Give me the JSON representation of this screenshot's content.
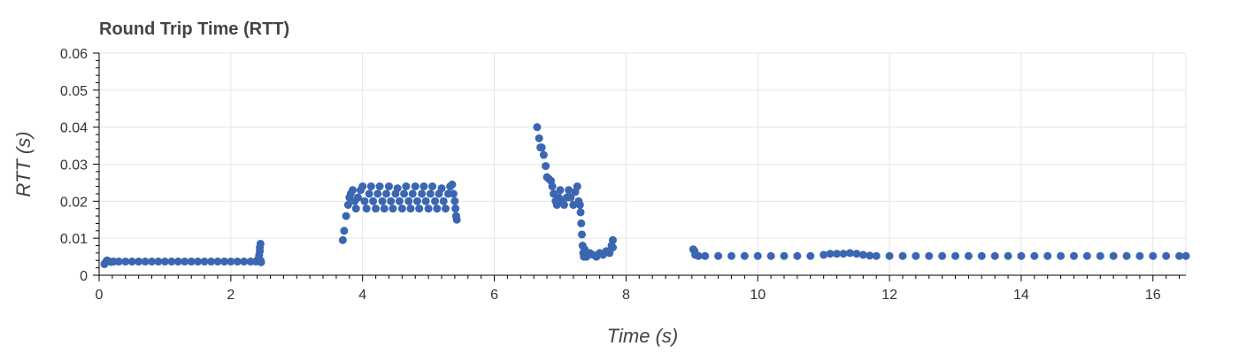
{
  "chart_data": {
    "type": "scatter",
    "title": "Round Trip Time (RTT)",
    "xlabel": "Time (s)",
    "ylabel": "RTT (s)",
    "xlim": [
      0,
      16.5
    ],
    "ylim": [
      0,
      0.06
    ],
    "x_ticks": [
      0,
      2,
      4,
      6,
      8,
      10,
      12,
      14,
      16
    ],
    "x_tick_labels": [
      "0",
      "2",
      "4",
      "6",
      "8",
      "10",
      "12",
      "14",
      "16"
    ],
    "y_ticks": [
      0,
      0.01,
      0.02,
      0.03,
      0.04,
      0.05,
      0.06
    ],
    "y_tick_labels": [
      "0",
      "0.01",
      "0.02",
      "0.03",
      "0.04",
      "0.05",
      "0.06"
    ],
    "grid": true,
    "colors": {
      "points": "#3a66b2",
      "grid": "#e5e5e5",
      "axis": "#000000"
    },
    "series": [
      {
        "x": [
          0.08,
          0.1,
          0.12,
          0.14,
          0.18,
          0.22,
          0.3,
          0.4,
          0.5,
          0.6,
          0.7,
          0.8,
          0.9,
          1.0,
          1.1,
          1.2,
          1.3,
          1.4,
          1.5,
          1.6,
          1.7,
          1.8,
          1.9,
          2.0,
          2.1,
          2.2,
          2.3,
          2.38,
          2.42,
          2.43,
          2.44,
          2.44,
          2.45,
          2.45,
          2.46,
          3.7,
          3.72,
          3.75,
          3.78,
          3.8,
          3.82,
          3.85,
          3.88,
          3.9,
          3.93,
          3.97,
          4.0,
          4.03,
          4.06,
          4.1,
          4.13,
          4.16,
          4.2,
          4.23,
          4.26,
          4.3,
          4.33,
          4.36,
          4.4,
          4.43,
          4.46,
          4.5,
          4.53,
          4.56,
          4.6,
          4.63,
          4.66,
          4.7,
          4.73,
          4.76,
          4.8,
          4.83,
          4.86,
          4.9,
          4.93,
          4.96,
          5.0,
          5.03,
          5.06,
          5.1,
          5.13,
          5.16,
          5.2,
          5.23,
          5.26,
          5.3,
          5.33,
          5.36,
          5.38,
          5.4,
          5.41,
          5.42,
          5.43,
          6.65,
          6.68,
          6.7,
          6.72,
          6.75,
          6.78,
          6.8,
          6.83,
          6.86,
          6.88,
          6.9,
          6.93,
          6.95,
          6.98,
          7.0,
          7.03,
          7.06,
          7.1,
          7.13,
          7.16,
          7.2,
          7.23,
          7.26,
          7.28,
          7.3,
          7.31,
          7.32,
          7.33,
          7.34,
          7.35,
          7.36,
          7.37,
          7.38,
          7.4,
          7.45,
          7.5,
          7.55,
          7.6,
          7.65,
          7.7,
          7.75,
          7.78,
          7.8,
          7.8,
          9.02,
          9.04,
          9.05,
          9.1,
          9.2,
          9.4,
          9.6,
          9.8,
          10.0,
          10.2,
          10.4,
          10.6,
          10.8,
          11.0,
          11.1,
          11.2,
          11.3,
          11.4,
          11.5,
          11.6,
          11.7,
          11.8,
          12.0,
          12.2,
          12.4,
          12.6,
          12.8,
          13.0,
          13.2,
          13.4,
          13.6,
          13.8,
          14.0,
          14.2,
          14.4,
          14.6,
          14.8,
          15.0,
          15.2,
          15.4,
          15.6,
          15.8,
          16.0,
          16.2,
          16.4,
          16.5
        ],
        "y": [
          0.003,
          0.0035,
          0.004,
          0.0038,
          0.0036,
          0.0037,
          0.0037,
          0.0037,
          0.0037,
          0.0037,
          0.0037,
          0.0037,
          0.0037,
          0.0037,
          0.0037,
          0.0037,
          0.0037,
          0.0037,
          0.0037,
          0.0037,
          0.0037,
          0.0037,
          0.0037,
          0.0037,
          0.0037,
          0.0037,
          0.0037,
          0.0037,
          0.0045,
          0.0055,
          0.0065,
          0.0075,
          0.0085,
          0.004,
          0.0035,
          0.0095,
          0.012,
          0.016,
          0.019,
          0.021,
          0.022,
          0.023,
          0.02,
          0.018,
          0.021,
          0.023,
          0.024,
          0.02,
          0.018,
          0.022,
          0.024,
          0.02,
          0.018,
          0.022,
          0.024,
          0.02,
          0.018,
          0.022,
          0.024,
          0.02,
          0.018,
          0.022,
          0.0235,
          0.02,
          0.018,
          0.022,
          0.024,
          0.02,
          0.018,
          0.022,
          0.024,
          0.02,
          0.018,
          0.022,
          0.024,
          0.02,
          0.018,
          0.022,
          0.024,
          0.02,
          0.018,
          0.022,
          0.0235,
          0.02,
          0.018,
          0.022,
          0.024,
          0.0245,
          0.022,
          0.02,
          0.018,
          0.016,
          0.015,
          0.04,
          0.037,
          0.0345,
          0.0345,
          0.0325,
          0.0295,
          0.0265,
          0.026,
          0.0255,
          0.024,
          0.022,
          0.02,
          0.019,
          0.021,
          0.023,
          0.02,
          0.019,
          0.021,
          0.023,
          0.021,
          0.019,
          0.0225,
          0.024,
          0.02,
          0.019,
          0.017,
          0.014,
          0.011,
          0.008,
          0.006,
          0.005,
          0.007,
          0.006,
          0.005,
          0.006,
          0.0055,
          0.005,
          0.006,
          0.0055,
          0.0065,
          0.006,
          0.008,
          0.0095,
          0.0075,
          0.007,
          0.0065,
          0.0055,
          0.0052,
          0.0052,
          0.0052,
          0.0052,
          0.0052,
          0.0052,
          0.0052,
          0.0052,
          0.0052,
          0.0052,
          0.0055,
          0.0058,
          0.0058,
          0.0058,
          0.006,
          0.0058,
          0.0055,
          0.0053,
          0.0052,
          0.0052,
          0.0052,
          0.0052,
          0.0052,
          0.0052,
          0.0052,
          0.0052,
          0.0052,
          0.0052,
          0.0052,
          0.0052,
          0.0052,
          0.0052,
          0.0052,
          0.0052,
          0.0052,
          0.0052,
          0.0052,
          0.0052,
          0.0052,
          0.0052,
          0.0052,
          0.0052,
          0.0052
        ]
      }
    ]
  }
}
